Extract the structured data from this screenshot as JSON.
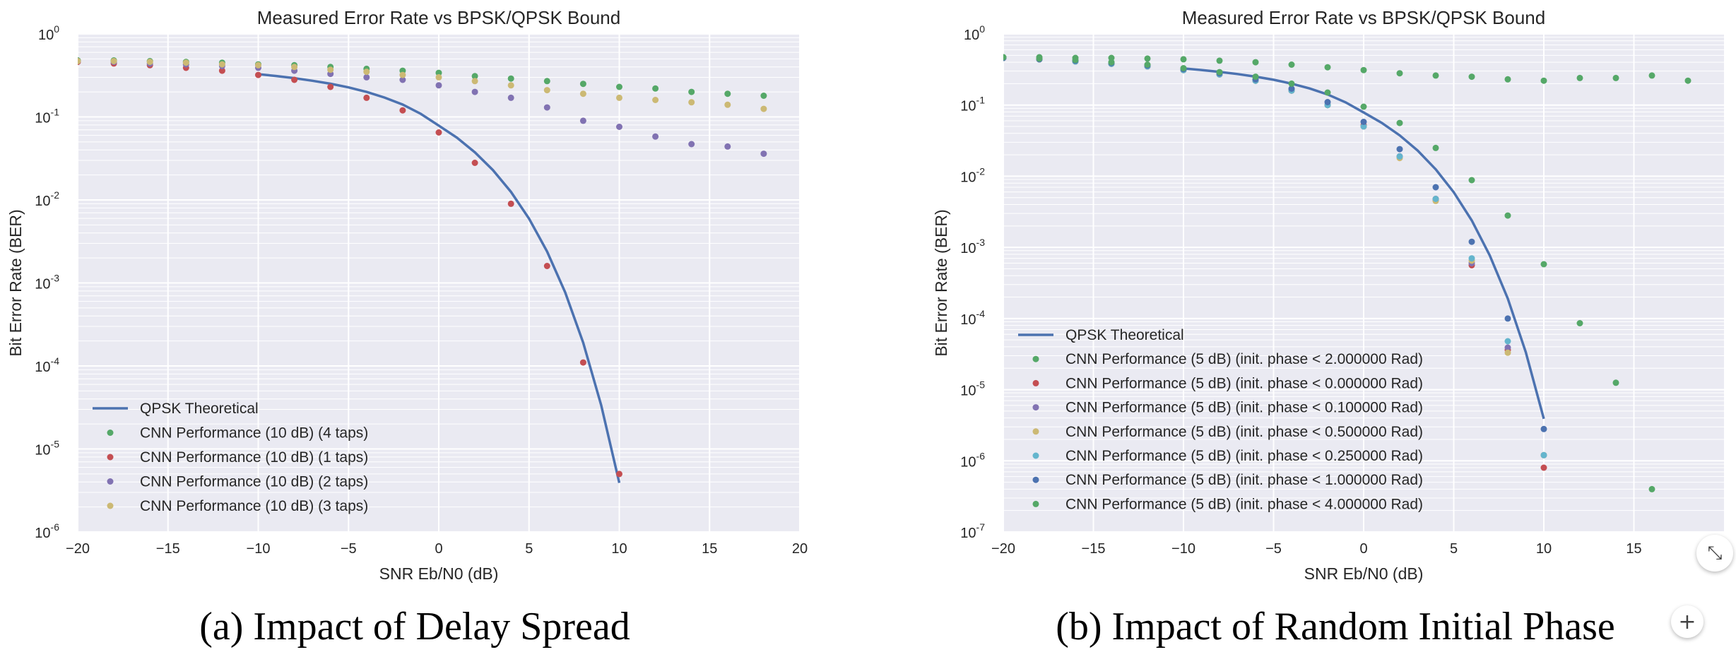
{
  "chart_data": [
    {
      "type": "scatter",
      "title": "Measured Error Rate vs BPSK/QPSK Bound",
      "xlabel": "SNR Eb/N0 (dB)",
      "ylabel": "Bit Error Rate (BER)",
      "xlim": [
        -20,
        20
      ],
      "ylim": [
        1e-06,
        1
      ],
      "yscale": "log",
      "xticks": [
        "−20",
        "−15",
        "−10",
        "−5",
        "0",
        "5",
        "10",
        "15",
        "20"
      ],
      "yticks": [
        {
          "base": "10",
          "exp": "0"
        },
        {
          "base": "10",
          "exp": "-1"
        },
        {
          "base": "10",
          "exp": "-2"
        },
        {
          "base": "10",
          "exp": "-3"
        },
        {
          "base": "10",
          "exp": "-4"
        },
        {
          "base": "10",
          "exp": "-5"
        },
        {
          "base": "10",
          "exp": "-6"
        }
      ],
      "grid": true,
      "legend_position": "lower-left",
      "caption": "(a) Impact of Delay Spread",
      "theory": {
        "name": "QPSK Theoretical",
        "color": "#4c72b0",
        "x": [
          -10,
          -9,
          -8,
          -7,
          -6,
          -5,
          -4,
          -3,
          -2,
          -1,
          0,
          1,
          2,
          3,
          4,
          5,
          6,
          7,
          8,
          9,
          10
        ],
        "y": [
          0.327,
          0.311,
          0.293,
          0.273,
          0.251,
          0.227,
          0.2,
          0.171,
          0.141,
          0.109,
          0.0786,
          0.0563,
          0.0375,
          0.0229,
          0.0125,
          0.00595,
          0.00239,
          0.00077,
          0.000191,
          3.36e-05,
          3.9e-06
        ]
      },
      "series": [
        {
          "name": "CNN Performance (10 dB) (4 taps)",
          "color": "#55a868",
          "x": [
            -20,
            -18,
            -16,
            -14,
            -12,
            -10,
            -8,
            -6,
            -4,
            -2,
            0,
            2,
            4,
            6,
            8,
            10,
            12,
            14,
            16,
            18
          ],
          "y": [
            0.48,
            0.48,
            0.47,
            0.46,
            0.45,
            0.43,
            0.42,
            0.4,
            0.38,
            0.36,
            0.34,
            0.31,
            0.29,
            0.27,
            0.25,
            0.23,
            0.22,
            0.2,
            0.19,
            0.18
          ]
        },
        {
          "name": "CNN Performance (10 dB) (1 taps)",
          "color": "#c44e52",
          "x": [
            -20,
            -18,
            -16,
            -14,
            -12,
            -10,
            -8,
            -6,
            -4,
            -2,
            0,
            2,
            4,
            6,
            8,
            10
          ],
          "y": [
            0.46,
            0.44,
            0.42,
            0.39,
            0.36,
            0.32,
            0.28,
            0.23,
            0.17,
            0.12,
            0.065,
            0.028,
            0.009,
            0.0016,
            0.00011,
            5e-06
          ]
        },
        {
          "name": "CNN Performance (10 dB) (2 taps)",
          "color": "#8172b2",
          "x": [
            -20,
            -18,
            -16,
            -14,
            -12,
            -10,
            -8,
            -6,
            -4,
            -2,
            0,
            2,
            4,
            6,
            8,
            10,
            12,
            14,
            16,
            18
          ],
          "y": [
            0.47,
            0.46,
            0.44,
            0.43,
            0.41,
            0.39,
            0.36,
            0.33,
            0.3,
            0.28,
            0.24,
            0.2,
            0.17,
            0.13,
            0.09,
            0.076,
            0.058,
            0.047,
            0.044,
            0.036
          ]
        },
        {
          "name": "CNN Performance (10 dB) (3 taps)",
          "color": "#ccb974",
          "x": [
            -20,
            -18,
            -16,
            -14,
            -12,
            -10,
            -8,
            -6,
            -4,
            -2,
            0,
            2,
            4,
            6,
            8,
            10,
            12,
            14,
            16,
            18
          ],
          "y": [
            0.47,
            0.47,
            0.46,
            0.45,
            0.43,
            0.42,
            0.4,
            0.37,
            0.35,
            0.32,
            0.3,
            0.27,
            0.24,
            0.21,
            0.19,
            0.17,
            0.16,
            0.15,
            0.14,
            0.125
          ]
        }
      ]
    },
    {
      "type": "scatter",
      "title": "Measured Error Rate vs BPSK/QPSK Bound",
      "xlabel": "SNR Eb/N0 (dB)",
      "ylabel": "Bit Error Rate (BER)",
      "xlim": [
        -20,
        20
      ],
      "ylim": [
        1e-07,
        1
      ],
      "yscale": "log",
      "xticks": [
        "−20",
        "−15",
        "−10",
        "−5",
        "0",
        "5",
        "10",
        "15"
      ],
      "yticks": [
        {
          "base": "10",
          "exp": "0"
        },
        {
          "base": "10",
          "exp": "-1"
        },
        {
          "base": "10",
          "exp": "-2"
        },
        {
          "base": "10",
          "exp": "-3"
        },
        {
          "base": "10",
          "exp": "-4"
        },
        {
          "base": "10",
          "exp": "-5"
        },
        {
          "base": "10",
          "exp": "-6"
        },
        {
          "base": "10",
          "exp": "-7"
        }
      ],
      "grid": true,
      "legend_position": "lower-left",
      "caption": "(b) Impact of Random Initial Phase",
      "theory": {
        "name": "QPSK Theoretical",
        "color": "#4c72b0",
        "x": [
          -10,
          -9,
          -8,
          -7,
          -6,
          -5,
          -4,
          -3,
          -2,
          -1,
          0,
          1,
          2,
          3,
          4,
          5,
          6,
          7,
          8,
          9,
          10
        ],
        "y": [
          0.327,
          0.311,
          0.293,
          0.273,
          0.251,
          0.227,
          0.2,
          0.171,
          0.141,
          0.109,
          0.0786,
          0.0563,
          0.0375,
          0.0229,
          0.0125,
          0.00595,
          0.00239,
          0.00077,
          0.000191,
          3.36e-05,
          3.9e-06
        ]
      },
      "series": [
        {
          "name": "CNN Performance (5 dB) (init. phase < 2.000000 Rad)",
          "color": "#55a868",
          "x": [
            -20,
            -18,
            -16,
            -14,
            -12,
            -10,
            -8,
            -6,
            -4,
            -2,
            0,
            2,
            4,
            6,
            8,
            10,
            12,
            14,
            16,
            18
          ],
          "y": [
            0.47,
            0.47,
            0.46,
            0.46,
            0.45,
            0.44,
            0.42,
            0.4,
            0.37,
            0.34,
            0.31,
            0.28,
            0.26,
            0.25,
            0.23,
            0.22,
            0.24,
            0.24,
            0.26,
            0.22
          ]
        },
        {
          "name": "CNN Performance (5 dB) (init. phase < 0.000000 Rad)",
          "color": "#c44e52",
          "x": [
            -20,
            -18,
            -16,
            -14,
            -12,
            -10,
            -8,
            -6,
            -4,
            -2,
            0,
            2,
            4,
            6,
            8,
            10
          ],
          "y": [
            0.46,
            0.44,
            0.41,
            0.38,
            0.35,
            0.31,
            0.27,
            0.22,
            0.16,
            0.1,
            0.052,
            0.019,
            0.0048,
            0.00056,
            3.6e-05,
            8e-07
          ]
        },
        {
          "name": "CNN Performance (5 dB) (init. phase < 0.100000 Rad)",
          "color": "#8172b2",
          "x": [
            -20,
            -18,
            -16,
            -14,
            -12,
            -10,
            -8,
            -6,
            -4,
            -2,
            0,
            2,
            4,
            6,
            8,
            10
          ],
          "y": [
            0.46,
            0.44,
            0.41,
            0.38,
            0.35,
            0.31,
            0.27,
            0.22,
            0.16,
            0.1,
            0.05,
            0.019,
            0.0046,
            0.0006,
            3.9e-05,
            1.2e-06
          ]
        },
        {
          "name": "CNN Performance (5 dB) (init. phase < 0.500000 Rad)",
          "color": "#ccb974",
          "x": [
            -20,
            -18,
            -16,
            -14,
            -12,
            -10,
            -8,
            -6,
            -4,
            -2,
            0,
            2,
            4,
            6,
            8,
            10
          ],
          "y": [
            0.46,
            0.44,
            0.41,
            0.38,
            0.35,
            0.31,
            0.27,
            0.22,
            0.16,
            0.1,
            0.05,
            0.018,
            0.0045,
            0.00065,
            3.3e-05,
            1.2e-06
          ]
        },
        {
          "name": "CNN Performance (5 dB) (init. phase < 0.250000 Rad)",
          "color": "#64b5cd",
          "x": [
            -20,
            -18,
            -16,
            -14,
            -12,
            -10,
            -8,
            -6,
            -4,
            -2,
            0,
            2,
            4,
            6,
            8,
            10
          ],
          "y": [
            0.46,
            0.44,
            0.41,
            0.38,
            0.35,
            0.31,
            0.27,
            0.22,
            0.16,
            0.1,
            0.05,
            0.019,
            0.0048,
            0.0007,
            4.8e-05,
            1.2e-06
          ]
        },
        {
          "name": "CNN Performance (5 dB) (init. phase < 1.000000 Rad)",
          "color": "#4c72b0",
          "x": [
            -20,
            -18,
            -16,
            -14,
            -12,
            -10,
            -8,
            -6,
            -4,
            -2,
            0,
            2,
            4,
            6,
            8,
            10
          ],
          "y": [
            0.46,
            0.44,
            0.42,
            0.39,
            0.36,
            0.32,
            0.28,
            0.23,
            0.17,
            0.11,
            0.058,
            0.024,
            0.007,
            0.0012,
            0.0001,
            2.8e-06
          ]
        },
        {
          "name": "CNN Performance (5 dB) (init. phase < 4.000000 Rad)",
          "color": "#55a868",
          "x": [
            -20,
            -18,
            -16,
            -14,
            -12,
            -10,
            -8,
            -6,
            -4,
            -2,
            0,
            2,
            4,
            6,
            8,
            10,
            12,
            14,
            16
          ],
          "y": [
            0.47,
            0.45,
            0.43,
            0.4,
            0.37,
            0.33,
            0.29,
            0.25,
            0.2,
            0.15,
            0.095,
            0.056,
            0.025,
            0.0088,
            0.0028,
            0.00058,
            8.6e-05,
            1.25e-05,
            4e-07
          ]
        }
      ]
    }
  ],
  "controls": {
    "collapse_icon": "collapse-icon",
    "collapse_glyph": "⤡",
    "add_icon": "plus-icon",
    "add_glyph": "+"
  }
}
